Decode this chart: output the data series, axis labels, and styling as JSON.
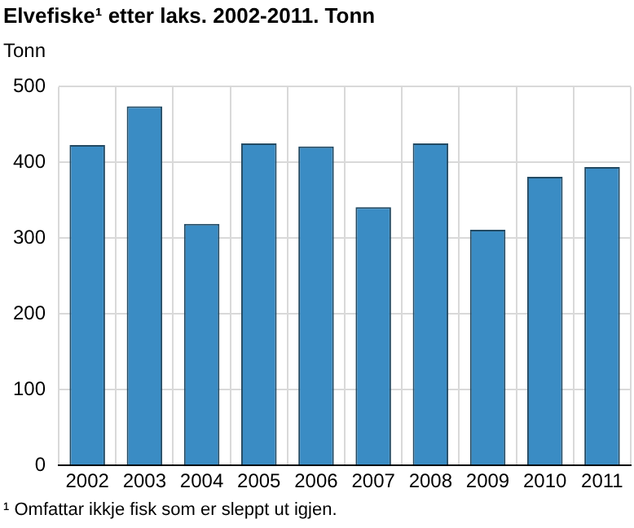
{
  "chart_data": {
    "type": "bar",
    "title": "Elvefiske¹ etter laks. 2002-2011. Tonn",
    "ylabel": "Tonn",
    "annotations": [
      "¹ Omfattar ikkje fisk som er sleppt ut igjen."
    ],
    "categories": [
      "2002",
      "2003",
      "2004",
      "2005",
      "2006",
      "2007",
      "2008",
      "2009",
      "2010",
      "2011"
    ],
    "values": [
      423,
      474,
      319,
      425,
      421,
      341,
      425,
      311,
      381,
      394
    ],
    "color": "#3a8cc4",
    "ylim": [
      0,
      500
    ],
    "yticks": [
      0,
      100,
      200,
      300,
      400,
      500
    ],
    "grid": true
  }
}
